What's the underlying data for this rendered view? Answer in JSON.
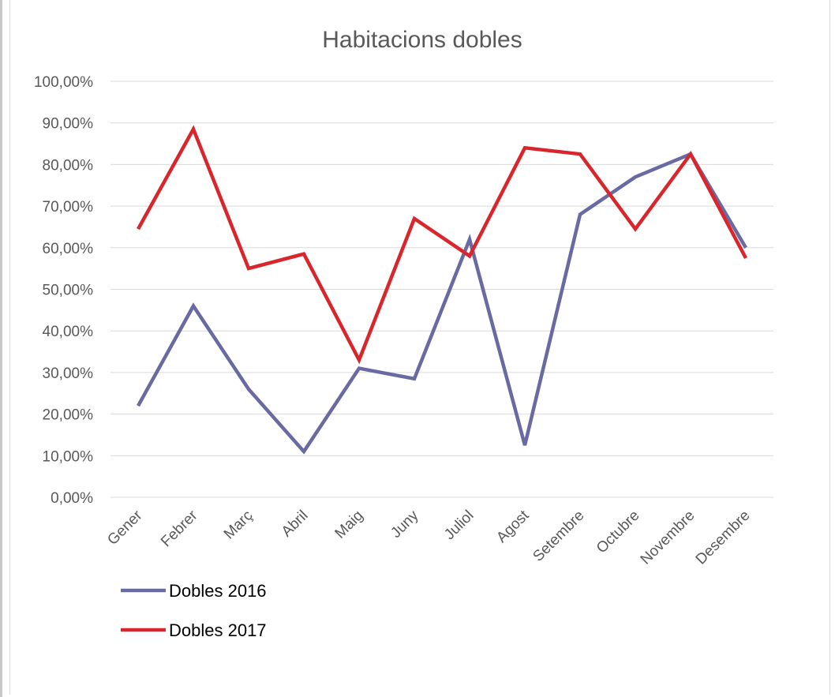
{
  "chart_data": {
    "type": "line",
    "title": "Habitacions dobles",
    "categories": [
      "Gener",
      "Febrer",
      "Març",
      "Abril",
      "Maig",
      "Juny",
      "Juliol",
      "Agost",
      "Setembre",
      "Octubre",
      "Novembre",
      "Desembre"
    ],
    "ylim": [
      0,
      100
    ],
    "y_ticks": [
      0,
      10,
      20,
      30,
      40,
      50,
      60,
      70,
      80,
      90,
      100
    ],
    "y_tick_labels": [
      "0,00%",
      "10,00%",
      "20,00%",
      "30,00%",
      "40,00%",
      "50,00%",
      "60,00%",
      "70,00%",
      "80,00%",
      "90,00%",
      "100,00%"
    ],
    "grid": true,
    "legend_position": "bottom-left",
    "series": [
      {
        "name": "Dobles 2016",
        "color": "#6a6aa3",
        "values": [
          22.0,
          46.0,
          26.0,
          11.0,
          31.0,
          28.5,
          62.0,
          12.5,
          68.0,
          77.0,
          82.5,
          60.0
        ]
      },
      {
        "name": "Dobles 2017",
        "color": "#d9262c",
        "values": [
          64.5,
          88.5,
          55.0,
          58.5,
          33.0,
          67.0,
          58.0,
          84.0,
          82.5,
          64.5,
          82.5,
          57.5
        ]
      }
    ]
  }
}
